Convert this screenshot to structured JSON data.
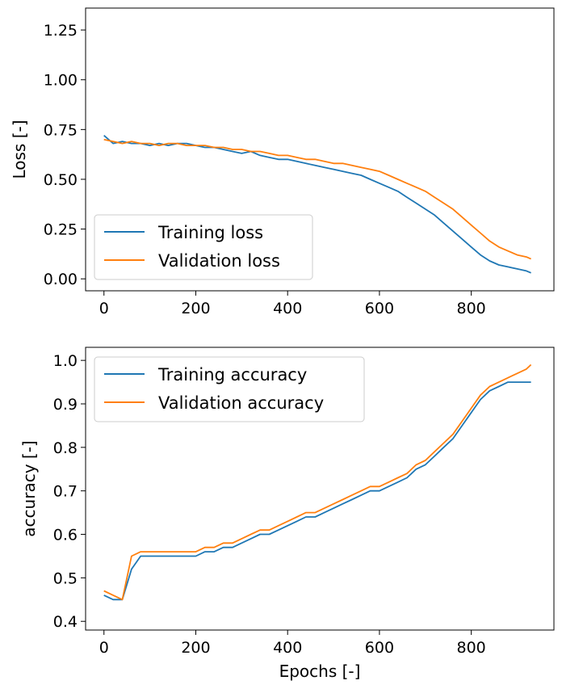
{
  "colors": {
    "training": "#1f77b4",
    "validation": "#ff7f0e"
  },
  "chart_data": [
    {
      "type": "line",
      "title": "",
      "xlabel": "",
      "ylabel": "Loss [-]",
      "xlim": [
        -40,
        980
      ],
      "ylim": [
        -0.06,
        1.36
      ],
      "xticks": [
        "0",
        "200",
        "400",
        "600",
        "800"
      ],
      "yticks": [
        "0.00",
        "0.25",
        "0.50",
        "0.75",
        "1.00",
        "1.25"
      ],
      "legend": "lower-left",
      "series": [
        {
          "name": "Training loss",
          "x": [
            0,
            20,
            40,
            60,
            80,
            100,
            120,
            140,
            160,
            180,
            200,
            220,
            240,
            260,
            280,
            300,
            320,
            340,
            360,
            380,
            400,
            420,
            440,
            460,
            480,
            500,
            520,
            540,
            560,
            580,
            600,
            620,
            640,
            660,
            680,
            700,
            720,
            740,
            760,
            780,
            800,
            820,
            840,
            860,
            880,
            900,
            920,
            930
          ],
          "y": [
            0.72,
            0.68,
            0.69,
            0.68,
            0.68,
            0.67,
            0.68,
            0.67,
            0.68,
            0.68,
            0.67,
            0.66,
            0.66,
            0.65,
            0.64,
            0.63,
            0.64,
            0.62,
            0.61,
            0.6,
            0.6,
            0.59,
            0.58,
            0.57,
            0.56,
            0.55,
            0.54,
            0.53,
            0.52,
            0.5,
            0.48,
            0.46,
            0.44,
            0.41,
            0.38,
            0.35,
            0.32,
            0.28,
            0.24,
            0.2,
            0.16,
            0.12,
            0.09,
            0.07,
            0.06,
            0.05,
            0.04,
            0.03
          ]
        },
        {
          "name": "Validation loss",
          "x": [
            0,
            20,
            40,
            60,
            80,
            100,
            120,
            140,
            160,
            180,
            200,
            220,
            240,
            260,
            280,
            300,
            320,
            340,
            360,
            380,
            400,
            420,
            440,
            460,
            480,
            500,
            520,
            540,
            560,
            580,
            600,
            620,
            640,
            660,
            680,
            700,
            720,
            740,
            760,
            780,
            800,
            820,
            840,
            860,
            880,
            900,
            920,
            930
          ],
          "y": [
            0.7,
            0.69,
            0.68,
            0.69,
            0.68,
            0.68,
            0.67,
            0.68,
            0.68,
            0.67,
            0.67,
            0.67,
            0.66,
            0.66,
            0.65,
            0.65,
            0.64,
            0.64,
            0.63,
            0.62,
            0.62,
            0.61,
            0.6,
            0.6,
            0.59,
            0.58,
            0.58,
            0.57,
            0.56,
            0.55,
            0.54,
            0.52,
            0.5,
            0.48,
            0.46,
            0.44,
            0.41,
            0.38,
            0.35,
            0.31,
            0.27,
            0.23,
            0.19,
            0.16,
            0.14,
            0.12,
            0.11,
            0.1
          ]
        }
      ]
    },
    {
      "type": "line",
      "title": "",
      "xlabel": "Epochs [-]",
      "ylabel": "accuracy [-]",
      "xlim": [
        -40,
        980
      ],
      "ylim": [
        0.38,
        1.03
      ],
      "xticks": [
        "0",
        "200",
        "400",
        "600",
        "800"
      ],
      "yticks": [
        "0.4",
        "0.5",
        "0.6",
        "0.7",
        "0.8",
        "0.9",
        "1.0"
      ],
      "legend": "upper-left",
      "series": [
        {
          "name": "Training accuracy",
          "x": [
            0,
            20,
            40,
            60,
            80,
            100,
            120,
            140,
            160,
            180,
            200,
            220,
            240,
            260,
            280,
            300,
            320,
            340,
            360,
            380,
            400,
            420,
            440,
            460,
            480,
            500,
            520,
            540,
            560,
            580,
            600,
            620,
            640,
            660,
            680,
            700,
            720,
            740,
            760,
            780,
            800,
            820,
            840,
            860,
            880,
            900,
            920,
            930
          ],
          "y": [
            0.46,
            0.45,
            0.45,
            0.52,
            0.55,
            0.55,
            0.55,
            0.55,
            0.55,
            0.55,
            0.55,
            0.56,
            0.56,
            0.57,
            0.57,
            0.58,
            0.59,
            0.6,
            0.6,
            0.61,
            0.62,
            0.63,
            0.64,
            0.64,
            0.65,
            0.66,
            0.67,
            0.68,
            0.69,
            0.7,
            0.7,
            0.71,
            0.72,
            0.73,
            0.75,
            0.76,
            0.78,
            0.8,
            0.82,
            0.85,
            0.88,
            0.91,
            0.93,
            0.94,
            0.95,
            0.95,
            0.95,
            0.95
          ]
        },
        {
          "name": "Validation accuracy",
          "x": [
            0,
            20,
            40,
            60,
            80,
            100,
            120,
            140,
            160,
            180,
            200,
            220,
            240,
            260,
            280,
            300,
            320,
            340,
            360,
            380,
            400,
            420,
            440,
            460,
            480,
            500,
            520,
            540,
            560,
            580,
            600,
            620,
            640,
            660,
            680,
            700,
            720,
            740,
            760,
            780,
            800,
            820,
            840,
            860,
            880,
            900,
            920,
            930
          ],
          "y": [
            0.47,
            0.46,
            0.45,
            0.55,
            0.56,
            0.56,
            0.56,
            0.56,
            0.56,
            0.56,
            0.56,
            0.57,
            0.57,
            0.58,
            0.58,
            0.59,
            0.6,
            0.61,
            0.61,
            0.62,
            0.63,
            0.64,
            0.65,
            0.65,
            0.66,
            0.67,
            0.68,
            0.69,
            0.7,
            0.71,
            0.71,
            0.72,
            0.73,
            0.74,
            0.76,
            0.77,
            0.79,
            0.81,
            0.83,
            0.86,
            0.89,
            0.92,
            0.94,
            0.95,
            0.96,
            0.97,
            0.98,
            0.99
          ]
        }
      ]
    }
  ]
}
